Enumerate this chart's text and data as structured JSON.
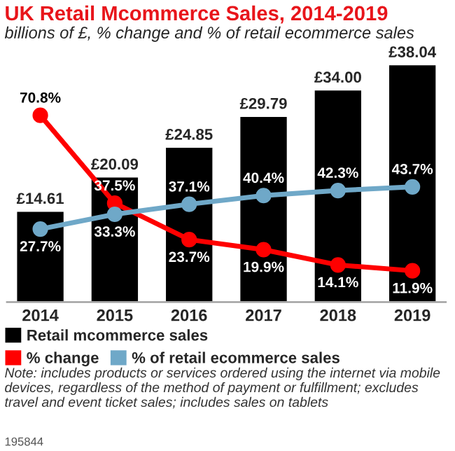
{
  "chart_data": {
    "type": "bar",
    "title": "UK Retail Mcommerce Sales, 2014-2019",
    "subtitle": "billions of £, % change and % of retail ecommerce sales",
    "categories": [
      "2014",
      "2015",
      "2016",
      "2017",
      "2018",
      "2019"
    ],
    "series": [
      {
        "name": "Retail mcommerce sales",
        "color": "#000000",
        "values": [
          14.61,
          20.09,
          24.85,
          29.79,
          34.0,
          38.04
        ],
        "value_labels": [
          "£14.61",
          "£20.09",
          "£24.85",
          "£29.79",
          "£34.00",
          "£38.04"
        ]
      },
      {
        "name": "% change",
        "type": "line",
        "axis": "y2",
        "color": "#ff0000",
        "values": [
          70.8,
          37.5,
          23.7,
          19.9,
          14.1,
          11.9
        ],
        "value_labels": [
          "70.8%",
          "37.5%",
          "23.7%",
          "19.9%",
          "14.1%",
          "11.9%"
        ]
      },
      {
        "name": "% of retail ecommerce sales",
        "type": "line",
        "axis": "y2",
        "color": "#6fa8c8",
        "values": [
          27.7,
          33.3,
          37.1,
          40.4,
          42.3,
          43.7
        ],
        "value_labels": [
          "27.7%",
          "33.3%",
          "37.1%",
          "40.4%",
          "42.3%",
          "43.7%"
        ]
      }
    ],
    "marker": "circle",
    "line_style": "solid",
    "legend": "bottom",
    "grid": false,
    "tick_labels": "x",
    "annotations": [
      "Note: includes products or services ordered using the internet via mobile devices, regardless of the method of payment or fulfillment; excludes travel and event ticket sales; includes sales on tablets",
      "195844"
    ]
  }
}
